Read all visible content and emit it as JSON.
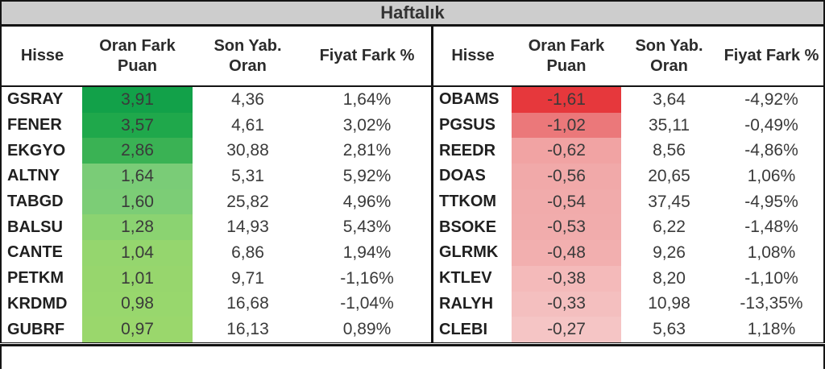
{
  "title": "Haftalık",
  "colors": {
    "title_bg": "#cdcdcd",
    "border": "#141414",
    "green_max": "#12a149",
    "green_min": "#9ad76c",
    "red_max": "#e6383c",
    "red_min": "#f5c5c5"
  },
  "chart_data": {
    "type": "table",
    "title": "Haftalık",
    "columns": [
      "Hisse",
      "Oran Fark Puan",
      "Son Yab. Oran",
      "Fiyat Fark %"
    ],
    "panels": [
      {
        "name": "gainers",
        "rows": [
          {
            "hisse": "GSRAY",
            "oran_fark_puan": "3,91",
            "son_yab_oran": "4,36",
            "fiyat_fark": "1,64%",
            "puan_color": "#12a149"
          },
          {
            "hisse": "FENER",
            "oran_fark_puan": "3,57",
            "son_yab_oran": "4,61",
            "fiyat_fark": "3,02%",
            "puan_color": "#1fa84b"
          },
          {
            "hisse": "EKGYO",
            "oran_fark_puan": "2,86",
            "son_yab_oran": "30,88",
            "fiyat_fark": "2,81%",
            "puan_color": "#3ab254"
          },
          {
            "hisse": "ALTNY",
            "oran_fark_puan": "1,64",
            "son_yab_oran": "5,31",
            "fiyat_fark": "5,92%",
            "puan_color": "#7acc77"
          },
          {
            "hisse": "TABGD",
            "oran_fark_puan": "1,60",
            "son_yab_oran": "25,82",
            "fiyat_fark": "4,96%",
            "puan_color": "#7ccd76"
          },
          {
            "hisse": "BALSU",
            "oran_fark_puan": "1,28",
            "son_yab_oran": "14,93",
            "fiyat_fark": "5,43%",
            "puan_color": "#8bd371"
          },
          {
            "hisse": "CANTE",
            "oran_fark_puan": "1,04",
            "son_yab_oran": "6,86",
            "fiyat_fark": "1,94%",
            "puan_color": "#95d66e"
          },
          {
            "hisse": "PETKM",
            "oran_fark_puan": "1,01",
            "son_yab_oran": "9,71",
            "fiyat_fark": "-1,16%",
            "puan_color": "#97d66d"
          },
          {
            "hisse": "KRDMD",
            "oran_fark_puan": "0,98",
            "son_yab_oran": "16,68",
            "fiyat_fark": "-1,04%",
            "puan_color": "#98d76d"
          },
          {
            "hisse": "GUBRF",
            "oran_fark_puan": "0,97",
            "son_yab_oran": "16,13",
            "fiyat_fark": "0,89%",
            "puan_color": "#9ad76c"
          }
        ]
      },
      {
        "name": "losers",
        "rows": [
          {
            "hisse": "OBAMS",
            "oran_fark_puan": "-1,61",
            "son_yab_oran": "3,64",
            "fiyat_fark": "-4,92%",
            "puan_color": "#e6383c"
          },
          {
            "hisse": "PGSUS",
            "oran_fark_puan": "-1,02",
            "son_yab_oran": "35,11",
            "fiyat_fark": "-0,49%",
            "puan_color": "#eb787a"
          },
          {
            "hisse": "REEDR",
            "oran_fark_puan": "-0,62",
            "son_yab_oran": "8,56",
            "fiyat_fark": "-4,86%",
            "puan_color": "#f1a3a3"
          },
          {
            "hisse": "DOAS",
            "oran_fark_puan": "-0,56",
            "son_yab_oran": "20,65",
            "fiyat_fark": "1,06%",
            "puan_color": "#f1a9a9"
          },
          {
            "hisse": "TTKOM",
            "oran_fark_puan": "-0,54",
            "son_yab_oran": "37,45",
            "fiyat_fark": "-4,95%",
            "puan_color": "#f1abab"
          },
          {
            "hisse": "BSOKE",
            "oran_fark_puan": "-0,53",
            "son_yab_oran": "6,22",
            "fiyat_fark": "-1,48%",
            "puan_color": "#f1acac"
          },
          {
            "hisse": "GLRMK",
            "oran_fark_puan": "-0,48",
            "son_yab_oran": "9,26",
            "fiyat_fark": "1,08%",
            "puan_color": "#f2afaf"
          },
          {
            "hisse": "KTLEV",
            "oran_fark_puan": "-0,38",
            "son_yab_oran": "8,20",
            "fiyat_fark": "-1,10%",
            "puan_color": "#f4baba"
          },
          {
            "hisse": "RALYH",
            "oran_fark_puan": "-0,33",
            "son_yab_oran": "10,98",
            "fiyat_fark": "-13,35%",
            "puan_color": "#f4bfbf"
          },
          {
            "hisse": "CLEBI",
            "oran_fark_puan": "-0,27",
            "son_yab_oran": "5,63",
            "fiyat_fark": "1,18%",
            "puan_color": "#f5c5c5"
          }
        ]
      }
    ]
  }
}
